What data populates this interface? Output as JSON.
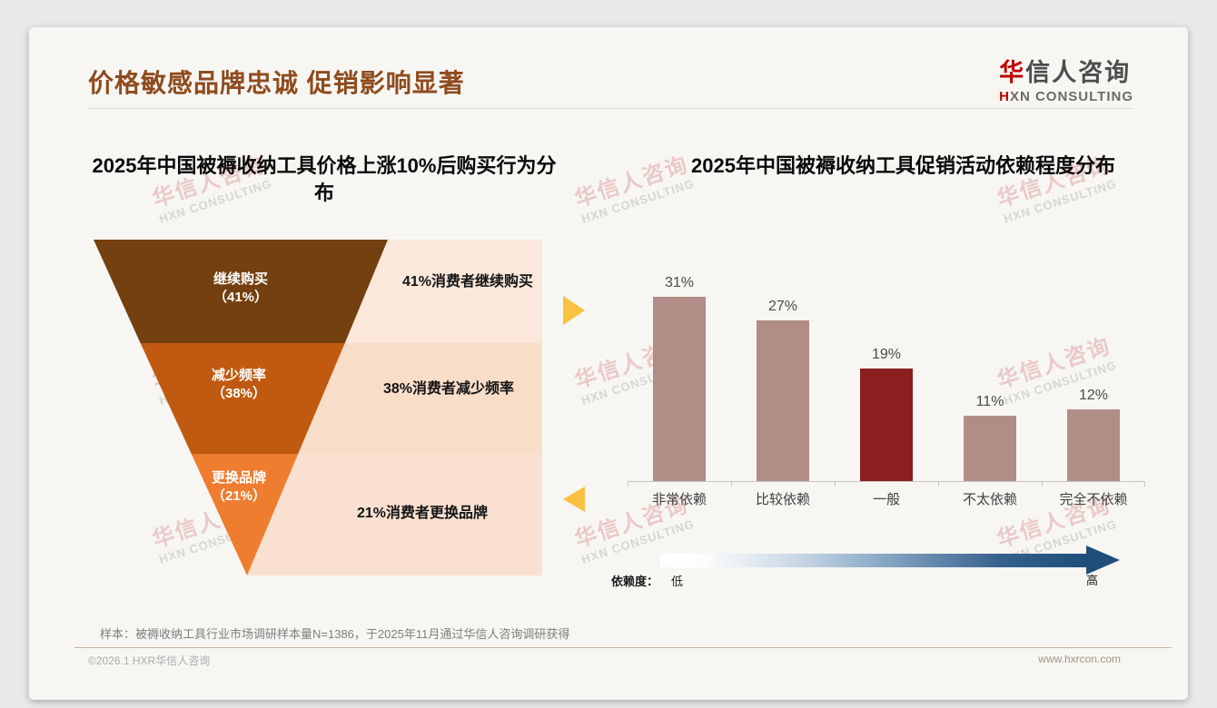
{
  "page": {
    "outer_bg": "#E9E9E9",
    "card_bg": "#F7F6F3"
  },
  "header": {
    "title": "价格敏感品牌忠诚 促销影响显著",
    "title_color": "#8E4B1E",
    "logo": {
      "zh_red": "华",
      "zh_rest": "信人咨询",
      "en_red": "H",
      "en_rest": "XN CONSULTING",
      "red": "#C00000"
    }
  },
  "watermark": {
    "zh": "华信人咨询",
    "en": "HXN CONSULTING"
  },
  "left_chart": {
    "title_line1": "2025年中国被褥收纳工具价格上涨10%后购买行为分",
    "title_line2": "布",
    "pct_labels": [
      "（41%）",
      "（38%）",
      "（21%）"
    ]
  },
  "right_chart": {
    "title": "2025年中国被褥收纳工具促销活动依赖程度分布",
    "legend_name": "依赖度：",
    "legend_low": "低",
    "legend_high": "高"
  },
  "footnote": "样本：被褥收纳工具行业市场调研样本量N=1386，于2025年11月通过华信人咨询调研获得",
  "footer": {
    "left": "©2026.1 HXR华信人咨询",
    "right": "www.hxrcon.com"
  },
  "chart_data": [
    {
      "type": "funnel",
      "title": "2025年中国被褥收纳工具价格上涨10%后购买行为分布",
      "categories": [
        "继续购买",
        "减少频率",
        "更换品牌"
      ],
      "values": [
        41,
        38,
        21
      ],
      "unit": "%",
      "annotations": [
        "41%消费者继续购买",
        "38%消费者减少频率",
        "21%消费者更换品牌"
      ],
      "colors": [
        "#74400F",
        "#C05A11",
        "#EE7D2F"
      ],
      "panel_colors": [
        "#FBE8DB",
        "#F8DDC9",
        "#F9E0D0"
      ],
      "legend_position": "none"
    },
    {
      "type": "bar",
      "title": "2025年中国被褥收纳工具促销活动依赖程度分布",
      "categories": [
        "非常依赖",
        "比较依赖",
        "一般",
        "不太依赖",
        "完全不依赖"
      ],
      "values": [
        31,
        27,
        19,
        11,
        12
      ],
      "unit": "%",
      "value_labels": [
        "31%",
        "27%",
        "19%",
        "11%",
        "12%"
      ],
      "bar_color": "#B08E86",
      "highlight_index": 2,
      "highlight_color": "#8B1F1F",
      "ylim": [
        0,
        35
      ],
      "grid": false,
      "legend_position": "none",
      "axis_arrow": {
        "label": "依赖度：",
        "from": "低",
        "to": "高",
        "gradient": [
          "#FFFFFF",
          "#1F4E79"
        ]
      }
    }
  ]
}
